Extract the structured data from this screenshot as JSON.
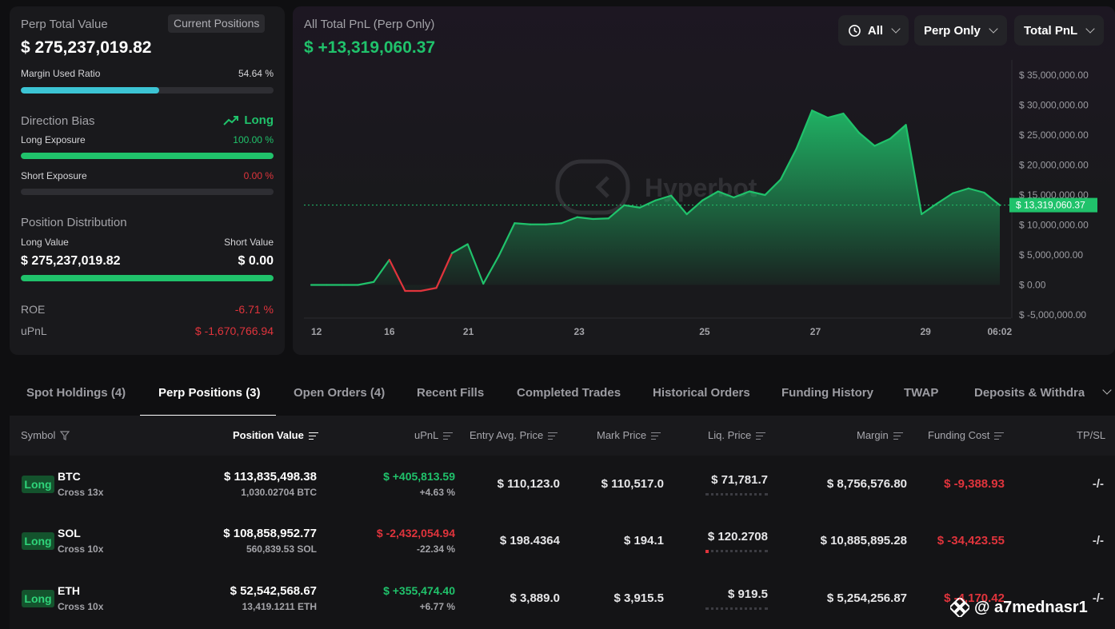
{
  "summary": {
    "title": "Perp Total Value",
    "current_positions_label": "Current Positions",
    "total_value": "$ 275,237,019.82",
    "margin_used_label": "Margin Used Ratio",
    "margin_used_value": "54.64 %",
    "margin_used_fraction": 0.5464,
    "direction_bias_label": "Direction Bias",
    "direction_bias_value": "Long",
    "long_exposure_label": "Long Exposure",
    "long_exposure_value": "100.00 %",
    "long_exposure_fraction": 1.0,
    "short_exposure_label": "Short Exposure",
    "short_exposure_value": "0.00 %",
    "short_exposure_fraction": 0.0,
    "position_distribution_label": "Position Distribution",
    "long_value_label": "Long Value",
    "short_value_label": "Short Value",
    "long_value": "$ 275,237,019.82",
    "short_value": "$ 0.00",
    "roe_label": "ROE",
    "roe_value": "-6.71 %",
    "upnl_label": "uPnL",
    "upnl_value": "$ -1,670,766.94"
  },
  "pnl": {
    "title": "All Total PnL (Perp Only)",
    "value": "$ +13,319,060.37",
    "filters": [
      "All",
      "Perp Only",
      "Total PnL"
    ],
    "current_label": "$ 13,319,060.37",
    "watermark": "Hyperbot"
  },
  "chart_data": {
    "type": "area",
    "x_tick_labels": [
      "12",
      "16",
      "21",
      "23",
      "25",
      "27",
      "29",
      "06:02"
    ],
    "y_tick_labels": [
      "$ 35,000,000.00",
      "$ 30,000,000.00",
      "$ 25,000,000.00",
      "$ 20,000,000.00",
      "$ 15,000,000.00",
      "$ 10,000,000.00",
      "$ 5,000,000.00",
      "$ 0.00",
      "$ -5,000,000.00"
    ],
    "ylim": [
      -5000000,
      35000000
    ],
    "current_value": 13319060.37,
    "values": [
      0,
      0,
      0,
      0,
      500000,
      4200000,
      -1000000,
      -1000000,
      -500000,
      5300000,
      6800000,
      200000,
      4900000,
      10300000,
      10100000,
      10100000,
      10300000,
      11300000,
      11000000,
      11100000,
      13300000,
      12900000,
      14100000,
      14900000,
      11800000,
      14100000,
      15600000,
      14600000,
      15600000,
      15000000,
      17600000,
      22700000,
      29100000,
      27900000,
      28600000,
      25400000,
      23200000,
      24400000,
      26700000,
      11800000,
      13600000,
      15300000,
      16100000,
      15400000,
      13300000
    ],
    "color_positive": "#20c26b",
    "color_negative": "#e0343c",
    "grid": false
  },
  "tabs": [
    "Spot Holdings (4)",
    "Perp Positions (3)",
    "Open Orders (4)",
    "Recent Fills",
    "Completed Trades",
    "Historical Orders",
    "Funding History",
    "TWAP",
    "Deposits & Withdraw"
  ],
  "table": {
    "headers": {
      "symbol": "Symbol",
      "position_value": "Position Value",
      "upnl": "uPnL",
      "entry": "Entry Avg. Price",
      "mark": "Mark Price",
      "liq": "Liq. Price",
      "margin": "Margin",
      "funding": "Funding Cost",
      "tpsl": "TP/SL"
    },
    "rows": [
      {
        "side": "Long",
        "symbol": "BTC",
        "mode": "Cross 13x",
        "position_value": "$ 113,835,498.38",
        "position_size": "1,030.02704 BTC",
        "upnl": "$ +405,813.59",
        "upnl_pct": "+4.63 %",
        "entry": "$ 110,123.0",
        "mark": "$ 110,517.0",
        "liq": "$ 71,781.7",
        "margin": "$ 8,756,576.80",
        "funding": "$ -9,388.93",
        "tpsl": "-/-"
      },
      {
        "side": "Long",
        "symbol": "SOL",
        "mode": "Cross 10x",
        "position_value": "$ 108,858,952.77",
        "position_size": "560,839.53 SOL",
        "upnl": "$ -2,432,054.94",
        "upnl_pct": "-22.34 %",
        "entry": "$ 198.4364",
        "mark": "$ 194.1",
        "liq": "$ 120.2708",
        "margin": "$ 10,885,895.28",
        "funding": "$ -34,423.55",
        "tpsl": "-/-"
      },
      {
        "side": "Long",
        "symbol": "ETH",
        "mode": "Cross 10x",
        "position_value": "$ 52,542,568.67",
        "position_size": "13,419.1211 ETH",
        "upnl": "$ +355,474.40",
        "upnl_pct": "+6.77 %",
        "entry": "$ 3,889.0",
        "mark": "$ 3,915.5",
        "liq": "$ 919.5",
        "margin": "$ 5,254,256.87",
        "funding": "$ -4,170.42",
        "tpsl": "-/-"
      }
    ]
  },
  "watermark_handle": "@ a7mednasr1"
}
